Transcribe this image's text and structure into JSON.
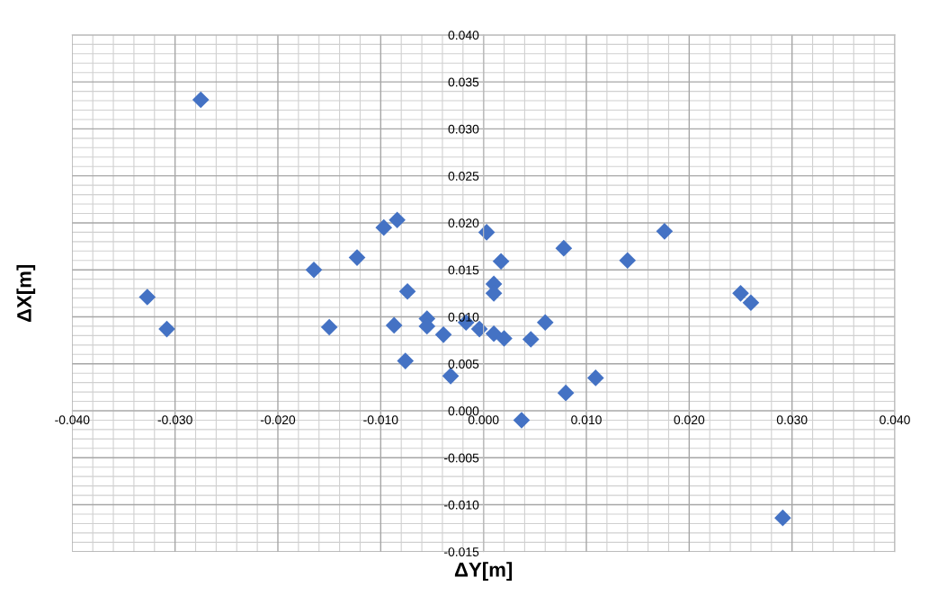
{
  "chart_data": {
    "type": "scatter",
    "xlabel": "ΔY[m]",
    "ylabel": "ΔX[m]",
    "x": [
      -0.0275,
      -0.0327,
      -0.0308,
      -0.0165,
      -0.015,
      -0.0123,
      -0.0097,
      -0.0084,
      -0.0074,
      -0.0087,
      -0.0076,
      -0.0055,
      -0.0055,
      -0.0039,
      -0.0032,
      -0.0017,
      -0.0004,
      0.0003,
      0.001,
      0.001,
      0.0017,
      0.001,
      0.002,
      0.0046,
      0.006,
      0.0037,
      0.0078,
      0.008,
      0.0109,
      0.014,
      0.0176,
      0.025,
      0.026,
      0.0291
    ],
    "series": [
      {
        "color": "#4472c4",
        "values": [
          0.0331,
          0.0121,
          0.0087,
          0.015,
          0.0089,
          0.0163,
          0.0195,
          0.0203,
          0.0127,
          0.0091,
          0.0053,
          0.0098,
          0.009,
          0.0081,
          0.0037,
          0.0094,
          0.0087,
          0.019,
          0.0135,
          0.0125,
          0.0159,
          0.0082,
          0.0077,
          0.0076,
          0.0094,
          -0.001,
          0.0173,
          0.0019,
          0.0035,
          0.016,
          0.0191,
          0.0125,
          0.0115,
          -0.0114
        ]
      }
    ],
    "xlim": [
      -0.04,
      0.04
    ],
    "ylim": [
      -0.015,
      0.04
    ],
    "xticks": [
      {
        "value": -0.04,
        "label": "-0.040"
      },
      {
        "value": -0.03,
        "label": "-0.030"
      },
      {
        "value": -0.02,
        "label": "-0.020"
      },
      {
        "value": -0.01,
        "label": "-0.010"
      },
      {
        "value": 0,
        "label": "0.000"
      },
      {
        "value": 0.01,
        "label": "0.010"
      },
      {
        "value": 0.02,
        "label": "0.020"
      },
      {
        "value": 0.03,
        "label": "0.030"
      },
      {
        "value": 0.04,
        "label": "0.040"
      }
    ],
    "yticks": [
      {
        "value": -0.015,
        "label": "-0.015"
      },
      {
        "value": -0.01,
        "label": "-0.010"
      },
      {
        "value": -0.005,
        "label": "-0.005"
      },
      {
        "value": 0,
        "label": "0.000"
      },
      {
        "value": 0.005,
        "label": "0.005"
      },
      {
        "value": 0.01,
        "label": "0.010"
      },
      {
        "value": 0.015,
        "label": "0.015"
      },
      {
        "value": 0.02,
        "label": "0.020"
      },
      {
        "value": 0.025,
        "label": "0.025"
      },
      {
        "value": 0.03,
        "label": "0.030"
      },
      {
        "value": 0.035,
        "label": "0.035"
      },
      {
        "value": 0.04,
        "label": "0.040"
      }
    ],
    "grid": true,
    "marker": "diamond"
  }
}
